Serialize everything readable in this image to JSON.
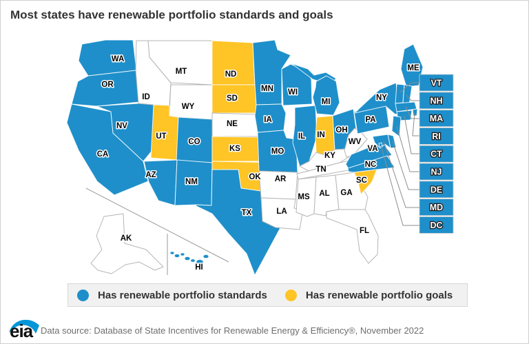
{
  "title": "Most states have renewable portfolio standards and goals",
  "colors": {
    "standards": "#1e8fca",
    "goals": "#ffc425",
    "none": "#ffffff"
  },
  "legend": {
    "items": [
      {
        "key": "standards",
        "label": "Has renewable portfolio standards",
        "color": "#1e8fca"
      },
      {
        "key": "goals",
        "label": "Has renewable portfolio goals",
        "color": "#ffc425"
      }
    ]
  },
  "map": {
    "states": [
      {
        "abbr": "WA",
        "status": "standards"
      },
      {
        "abbr": "OR",
        "status": "standards"
      },
      {
        "abbr": "CA",
        "status": "standards"
      },
      {
        "abbr": "NV",
        "status": "standards"
      },
      {
        "abbr": "ID",
        "status": "none"
      },
      {
        "abbr": "MT",
        "status": "none"
      },
      {
        "abbr": "WY",
        "status": "none"
      },
      {
        "abbr": "UT",
        "status": "goals"
      },
      {
        "abbr": "CO",
        "status": "standards"
      },
      {
        "abbr": "AZ",
        "status": "standards"
      },
      {
        "abbr": "NM",
        "status": "standards"
      },
      {
        "abbr": "ND",
        "status": "goals"
      },
      {
        "abbr": "SD",
        "status": "goals"
      },
      {
        "abbr": "NE",
        "status": "none"
      },
      {
        "abbr": "KS",
        "status": "goals"
      },
      {
        "abbr": "OK",
        "status": "goals"
      },
      {
        "abbr": "TX",
        "status": "standards"
      },
      {
        "abbr": "MN",
        "status": "standards"
      },
      {
        "abbr": "IA",
        "status": "standards"
      },
      {
        "abbr": "MO",
        "status": "standards"
      },
      {
        "abbr": "AR",
        "status": "none"
      },
      {
        "abbr": "LA",
        "status": "none"
      },
      {
        "abbr": "WI",
        "status": "standards"
      },
      {
        "abbr": "IL",
        "status": "standards"
      },
      {
        "abbr": "IN",
        "status": "goals"
      },
      {
        "abbr": "MI",
        "status": "standards"
      },
      {
        "abbr": "OH",
        "status": "standards"
      },
      {
        "abbr": "KY",
        "status": "none"
      },
      {
        "abbr": "TN",
        "status": "none"
      },
      {
        "abbr": "MS",
        "status": "none"
      },
      {
        "abbr": "AL",
        "status": "none"
      },
      {
        "abbr": "GA",
        "status": "none"
      },
      {
        "abbr": "FL",
        "status": "none"
      },
      {
        "abbr": "WV",
        "status": "none"
      },
      {
        "abbr": "VA",
        "status": "standards"
      },
      {
        "abbr": "NC",
        "status": "standards"
      },
      {
        "abbr": "SC",
        "status": "goals"
      },
      {
        "abbr": "PA",
        "status": "standards"
      },
      {
        "abbr": "NY",
        "status": "standards"
      },
      {
        "abbr": "ME",
        "status": "standards"
      },
      {
        "abbr": "VT",
        "status": "standards"
      },
      {
        "abbr": "NH",
        "status": "standards"
      },
      {
        "abbr": "MA",
        "status": "standards"
      },
      {
        "abbr": "RI",
        "status": "standards"
      },
      {
        "abbr": "CT",
        "status": "standards"
      },
      {
        "abbr": "NJ",
        "status": "standards"
      },
      {
        "abbr": "DE",
        "status": "standards"
      },
      {
        "abbr": "MD",
        "status": "standards"
      },
      {
        "abbr": "DC",
        "status": "standards"
      },
      {
        "abbr": "AK",
        "status": "none"
      },
      {
        "abbr": "HI",
        "status": "standards"
      }
    ],
    "callout_states": [
      "VT",
      "NH",
      "MA",
      "RI",
      "CT",
      "NJ",
      "DE",
      "MD",
      "DC"
    ]
  },
  "footer": {
    "logo_text": "eia",
    "source_text": "Data source: Database of State Incentives for Renewable Energy & Efficiency®, November 2022"
  }
}
